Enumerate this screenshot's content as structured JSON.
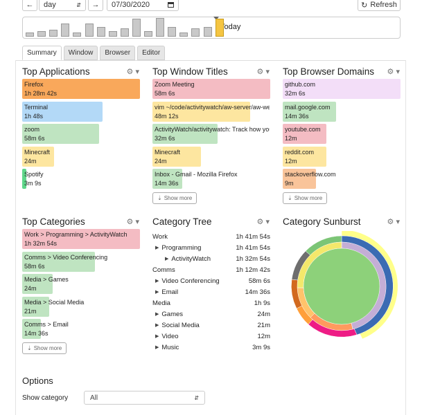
{
  "toolbar": {
    "back_icon": "arrow-left-icon",
    "period": "day",
    "period_icon": "sort-icon",
    "forward_icon": "arrow-right-icon",
    "date": "07/30/2020",
    "calendar_icon": "calendar-icon",
    "refresh_label": "Refresh",
    "refresh_icon": "refresh-icon"
  },
  "timeline": {
    "today_label": "Today",
    "days": [
      {
        "level": 0.23,
        "today": false
      },
      {
        "level": 0.29,
        "today": false
      },
      {
        "level": 0.38,
        "today": false
      },
      {
        "level": 0.71,
        "today": false
      },
      {
        "level": 0.24,
        "today": false
      },
      {
        "level": 0.71,
        "today": false
      },
      {
        "level": 0.53,
        "today": false
      },
      {
        "level": 0.28,
        "today": false
      },
      {
        "level": 0.44,
        "today": false
      },
      {
        "level": 0.97,
        "today": false
      },
      {
        "level": 0.29,
        "today": false
      },
      {
        "level": 1.0,
        "today": false
      },
      {
        "level": 0.52,
        "today": false
      },
      {
        "level": 0.24,
        "today": false
      },
      {
        "level": 0.43,
        "today": false
      },
      {
        "level": 0.51,
        "today": false
      },
      {
        "level": 0.97,
        "today": true
      }
    ]
  },
  "tabs": [
    {
      "label": "Summary",
      "active": true
    },
    {
      "label": "Window",
      "active": false
    },
    {
      "label": "Browser",
      "active": false
    },
    {
      "label": "Editor",
      "active": false
    }
  ],
  "colors": {
    "orange": "#f9a85b",
    "blue": "#b3d9f7",
    "green": "#bfe4c1",
    "yellow": "#fde6a0",
    "pink": "#f4bcc3",
    "lavender": "#f3def8",
    "peach": "#f9c49a"
  },
  "panels": {
    "apps": {
      "title": "Top Applications",
      "entries": [
        {
          "name": "Firefox",
          "time": "1h 28m 42s",
          "frac": 1.0,
          "color": "#f9a85b"
        },
        {
          "name": "Terminal",
          "time": "1h 48s",
          "frac": 0.68,
          "color": "#b3d9f7"
        },
        {
          "name": "zoom",
          "time": "58m 6s",
          "frac": 0.65,
          "color": "#bfe4c1"
        },
        {
          "name": "Minecraft",
          "time": "24m",
          "frac": 0.27,
          "color": "#fde6a0"
        },
        {
          "name": "Spotify",
          "time": "3m 9s",
          "frac": 0.035,
          "color": "#5fd68a"
        }
      ]
    },
    "titles": {
      "title": "Top Window Titles",
      "show_more": "Show more",
      "entries": [
        {
          "name": "Zoom Meeting",
          "time": "58m 6s",
          "frac": 1.0,
          "color": "#f4bcc3"
        },
        {
          "name": "vim ~/code/activitywatch/aw-server/aw-webui",
          "time": "48m 12s",
          "frac": 0.83,
          "color": "#fde6a0"
        },
        {
          "name": "ActivityWatch/activitywatch: Track how you spend your time",
          "time": "32m 6s",
          "frac": 0.55,
          "color": "#bfe4c1"
        },
        {
          "name": "Minecraft",
          "time": "24m",
          "frac": 0.41,
          "color": "#fde6a0"
        },
        {
          "name": "Inbox - Gmail - Mozilla Firefox",
          "time": "14m 36s",
          "frac": 0.25,
          "color": "#bfe4c1"
        }
      ]
    },
    "domains": {
      "title": "Top Browser Domains",
      "show_more": "Show more",
      "entries": [
        {
          "name": "github.com",
          "time": "32m 6s",
          "frac": 1.0,
          "color": "#f3def8"
        },
        {
          "name": "mail.google.com",
          "time": "14m 36s",
          "frac": 0.45,
          "color": "#bfe4c1"
        },
        {
          "name": "youtube.com",
          "time": "12m",
          "frac": 0.37,
          "color": "#f4bcc3"
        },
        {
          "name": "reddit.com",
          "time": "12m",
          "frac": 0.37,
          "color": "#fde6a0"
        },
        {
          "name": "stackoverflow.com",
          "time": "9m",
          "frac": 0.28,
          "color": "#f9c49a"
        }
      ]
    },
    "categories": {
      "title": "Top Categories",
      "show_more": "Show more",
      "entries": [
        {
          "name": "Work > Programming > ActivityWatch",
          "time": "1h 32m 54s",
          "frac": 1.0,
          "color": "#f4bcc3"
        },
        {
          "name": "Comms > Video Conferencing",
          "time": "58m 6s",
          "frac": 0.62,
          "color": "#bfe4c1"
        },
        {
          "name": "Media > Games",
          "time": "24m",
          "frac": 0.26,
          "color": "#bfe4c1"
        },
        {
          "name": "Media > Social Media",
          "time": "21m",
          "frac": 0.23,
          "color": "#bfe4c1"
        },
        {
          "name": "Comms > Email",
          "time": "14m 36s",
          "frac": 0.16,
          "color": "#bfe4c1"
        }
      ]
    },
    "tree": {
      "title": "Category Tree",
      "rows": [
        {
          "indent": 0,
          "arrow": false,
          "name": "Work",
          "time": "1h 41m 54s"
        },
        {
          "indent": 1,
          "arrow": true,
          "name": "Programming",
          "time": "1h 41m 54s"
        },
        {
          "indent": 2,
          "arrow": true,
          "name": "ActivityWatch",
          "time": "1h 32m 54s"
        },
        {
          "indent": 0,
          "arrow": false,
          "name": "Comms",
          "time": "1h 12m 42s"
        },
        {
          "indent": 1,
          "arrow": true,
          "name": "Video Conferencing",
          "time": "58m 6s"
        },
        {
          "indent": 1,
          "arrow": true,
          "name": "Email",
          "time": "14m 36s"
        },
        {
          "indent": 0,
          "arrow": false,
          "name": "Media",
          "time": "1h 9s"
        },
        {
          "indent": 1,
          "arrow": true,
          "name": "Games",
          "time": "24m"
        },
        {
          "indent": 1,
          "arrow": true,
          "name": "Social Media",
          "time": "21m"
        },
        {
          "indent": 1,
          "arrow": true,
          "name": "Video",
          "time": "12m"
        },
        {
          "indent": 1,
          "arrow": true,
          "name": "Music",
          "time": "3m 9s"
        }
      ]
    },
    "sunburst": {
      "title": "Category Sunburst"
    }
  },
  "options": {
    "title": "Options",
    "show_category_label": "Show category",
    "show_category_value": "All"
  }
}
